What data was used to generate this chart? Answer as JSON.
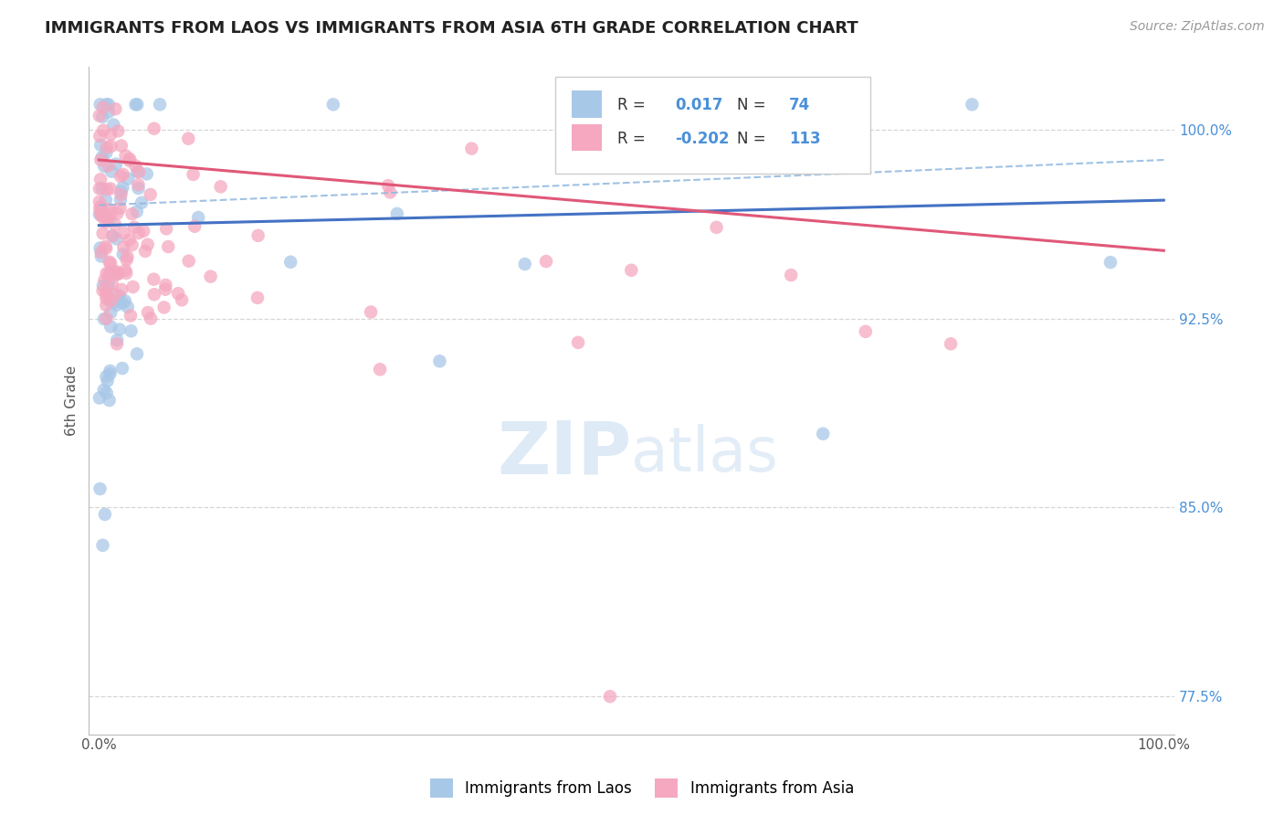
{
  "title": "IMMIGRANTS FROM LAOS VS IMMIGRANTS FROM ASIA 6TH GRADE CORRELATION CHART",
  "source": "Source: ZipAtlas.com",
  "ylabel": "6th Grade",
  "right_yticks": [
    77.5,
    85.0,
    92.5,
    100.0
  ],
  "blue_dot_color": "#a8c8e8",
  "pink_dot_color": "#f5a8c0",
  "blue_line_color": "#4472c4",
  "pink_line_color": "#e05878",
  "blue_dash_color": "#90b8e0",
  "watermark_color": "#c8ddf0",
  "background_color": "#ffffff",
  "grid_color": "#cccccc",
  "title_color": "#222222",
  "axis_label_color": "#555555",
  "right_label_color": "#4a90d9",
  "legend_blue_R": "0.017",
  "legend_blue_N": "74",
  "legend_pink_R": "-0.202",
  "legend_pink_N": "113"
}
